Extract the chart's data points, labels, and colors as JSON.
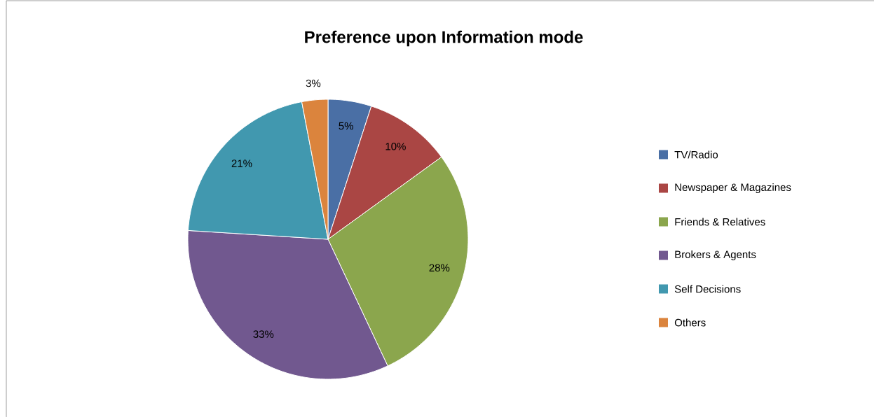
{
  "chart_data": {
    "type": "pie",
    "title": "Preference upon Information mode",
    "categories": [
      "TV/Radio",
      "Newspaper & Magazines",
      "Friends & Relatives",
      "Brokers & Agents",
      "Self Decisions",
      "Others"
    ],
    "values": [
      5,
      10,
      28,
      33,
      21,
      3
    ],
    "value_labels": [
      "5%",
      "10%",
      "28%",
      "33%",
      "21%",
      "3%"
    ],
    "colors": [
      "#4a6fa5",
      "#aa4644",
      "#8ba64d",
      "#71588f",
      "#4198af",
      "#db843d"
    ],
    "legend": "right"
  }
}
